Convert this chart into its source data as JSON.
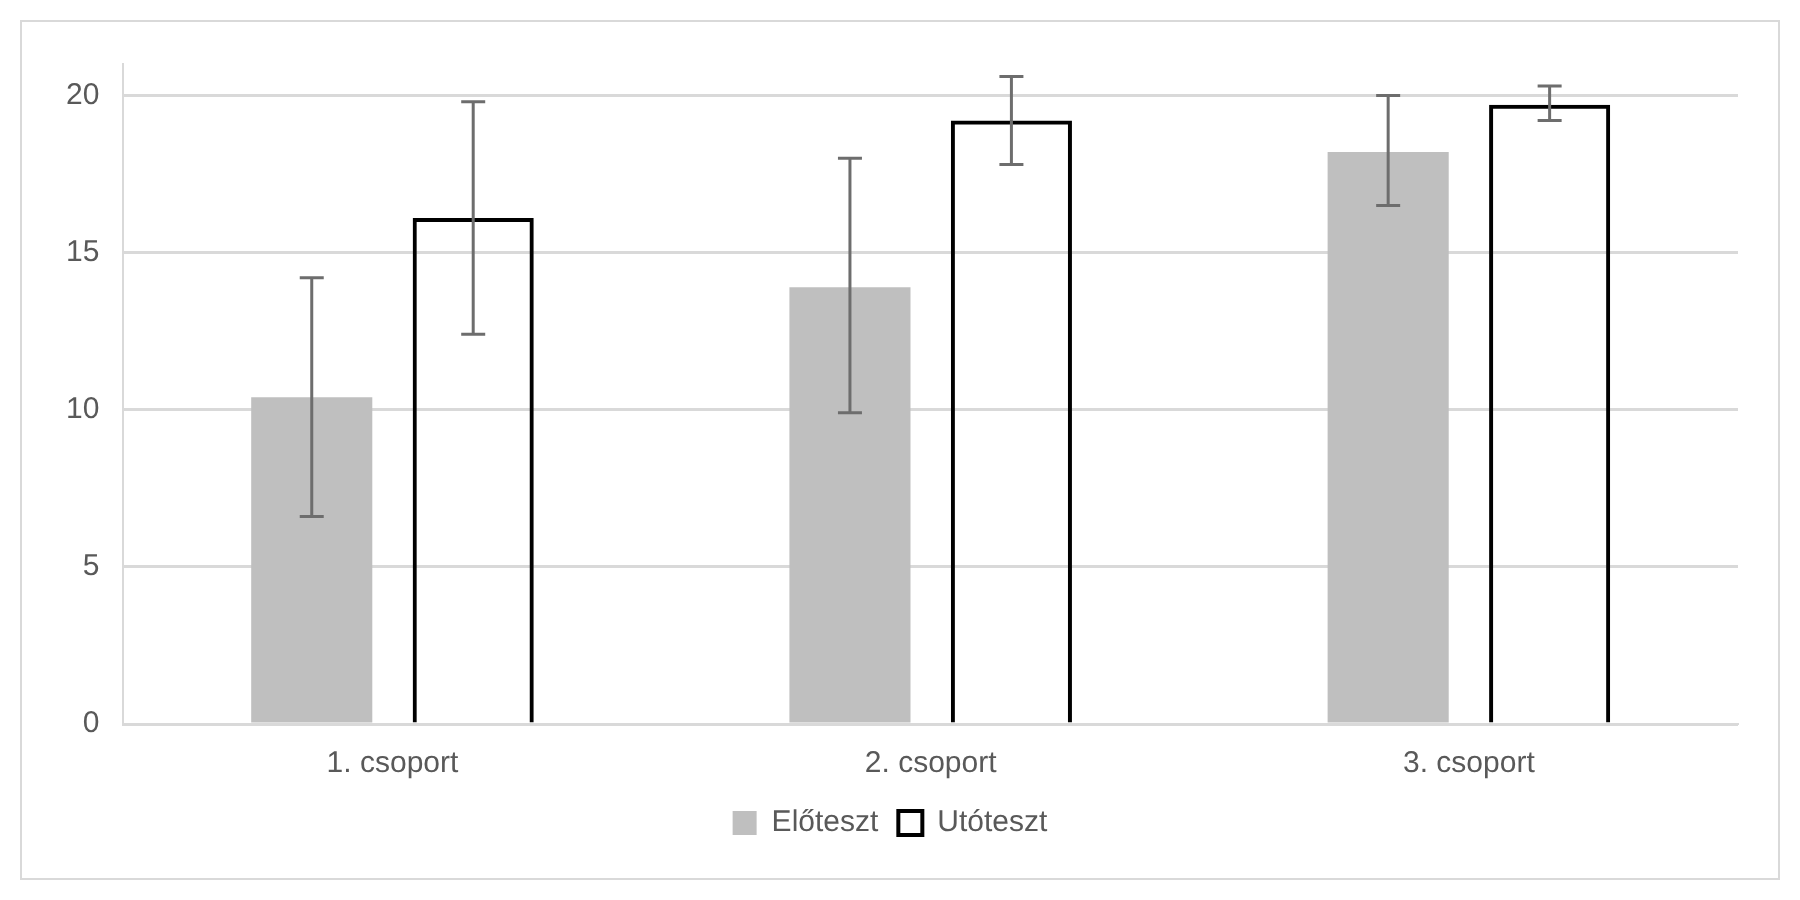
{
  "chart_data": {
    "type": "bar",
    "categories": [
      "1. csoport",
      "2. csoport",
      "3. csoport"
    ],
    "series": [
      {
        "name": "Előteszt",
        "color": "#bfbfbf",
        "values": [
          10.4,
          13.9,
          18.2
        ],
        "errors": [
          [
            6.6,
            14.2
          ],
          [
            9.9,
            18.0
          ],
          [
            16.5,
            20.0
          ]
        ]
      },
      {
        "name": "Utóteszt",
        "color": "#000000",
        "values": [
          16.1,
          19.2,
          19.7
        ],
        "errors": [
          [
            12.4,
            19.8
          ],
          [
            17.8,
            20.6
          ],
          [
            19.2,
            20.3
          ]
        ]
      }
    ],
    "ylim": [
      0,
      21
    ],
    "yticks": [
      0,
      5,
      10,
      15,
      20
    ],
    "grid": "y",
    "legend": "bottom"
  }
}
